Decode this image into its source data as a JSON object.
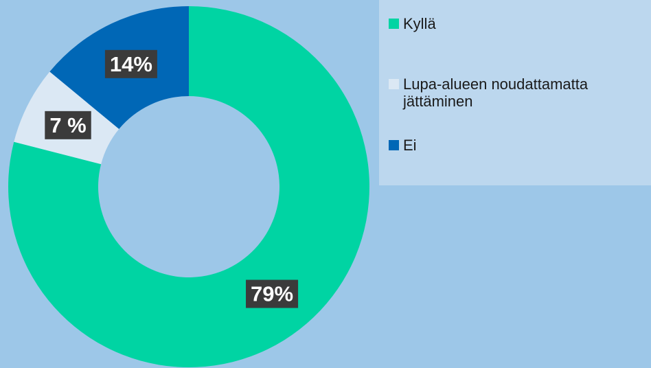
{
  "chart_data": {
    "type": "donut",
    "categories": [
      "Kyllä",
      "Lupa-alueen noudattamatta jättäminen",
      "Ei"
    ],
    "values": [
      79,
      7,
      14
    ],
    "value_labels": [
      "79%",
      "7 %",
      "14%"
    ],
    "colors": [
      "#00d4a3",
      "#dbe8f4",
      "#0067b6"
    ],
    "legend": "right"
  }
}
